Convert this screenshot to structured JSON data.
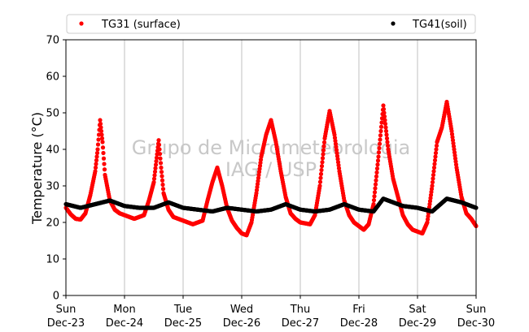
{
  "chart_data": {
    "type": "scatter",
    "ylabel": "Temperature (°C)",
    "xlabel": "",
    "ylim": [
      0,
      70
    ],
    "yticks": [
      0,
      10,
      20,
      30,
      40,
      50,
      60,
      70
    ],
    "xlim": [
      "2018-12-23 00:00",
      "2018-12-30 00:00"
    ],
    "xticks": [
      {
        "day": "Sun",
        "date": "Dec-23"
      },
      {
        "day": "Mon",
        "date": "Dec-24"
      },
      {
        "day": "Tue",
        "date": "Dec-25"
      },
      {
        "day": "Wed",
        "date": "Dec-26"
      },
      {
        "day": "Thu",
        "date": "Dec-27"
      },
      {
        "day": "Fri",
        "date": "Dec-28"
      },
      {
        "day": "Sat",
        "date": "Dec-29"
      },
      {
        "day": "Sun",
        "date": "Dec-30"
      }
    ],
    "grid": "vertical",
    "legend_position": "top",
    "watermark": [
      "Grupo de Micrometeorologia",
      "IAG / USP"
    ],
    "series": [
      {
        "name": "TG31 (surface)",
        "color": "#ff0000",
        "points": [
          [
            "2018-12-23 00:00",
            24.0
          ],
          [
            "2018-12-23 02:00",
            22.2
          ],
          [
            "2018-12-23 04:00",
            21.0
          ],
          [
            "2018-12-23 06:00",
            20.8
          ],
          [
            "2018-12-23 08:00",
            22.5
          ],
          [
            "2018-12-23 10:00",
            27.5
          ],
          [
            "2018-12-23 12:00",
            34.0
          ],
          [
            "2018-12-23 13:00",
            40.0
          ],
          [
            "2018-12-23 14:00",
            48.0
          ],
          [
            "2018-12-23 15:00",
            42.0
          ],
          [
            "2018-12-23 16:00",
            33.0
          ],
          [
            "2018-12-23 18:00",
            26.0
          ],
          [
            "2018-12-23 20:00",
            23.5
          ],
          [
            "2018-12-23 22:00",
            22.5
          ],
          [
            "2018-12-24 00:00",
            22.0
          ],
          [
            "2018-12-24 04:00",
            21.0
          ],
          [
            "2018-12-24 08:00",
            22.0
          ],
          [
            "2018-12-24 10:00",
            26.0
          ],
          [
            "2018-12-24 12:00",
            31.0
          ],
          [
            "2018-12-24 14:00",
            42.5
          ],
          [
            "2018-12-24 15:00",
            35.0
          ],
          [
            "2018-12-24 16:00",
            28.0
          ],
          [
            "2018-12-24 18:00",
            23.5
          ],
          [
            "2018-12-24 20:00",
            21.5
          ],
          [
            "2018-12-24 22:00",
            21.0
          ],
          [
            "2018-12-25 00:00",
            20.5
          ],
          [
            "2018-12-25 04:00",
            19.5
          ],
          [
            "2018-12-25 08:00",
            20.5
          ],
          [
            "2018-12-25 10:00",
            26.0
          ],
          [
            "2018-12-25 12:00",
            31.0
          ],
          [
            "2018-12-25 14:00",
            35.0
          ],
          [
            "2018-12-25 16:00",
            30.0
          ],
          [
            "2018-12-25 18:00",
            24.0
          ],
          [
            "2018-12-25 20:00",
            20.5
          ],
          [
            "2018-12-25 22:00",
            18.5
          ],
          [
            "2018-12-26 00:00",
            17.0
          ],
          [
            "2018-12-26 02:00",
            16.5
          ],
          [
            "2018-12-26 04:00",
            20.0
          ],
          [
            "2018-12-26 06:00",
            28.0
          ],
          [
            "2018-12-26 08:00",
            38.0
          ],
          [
            "2018-12-26 10:00",
            44.0
          ],
          [
            "2018-12-26 12:00",
            48.0
          ],
          [
            "2018-12-26 14:00",
            42.0
          ],
          [
            "2018-12-26 16:00",
            34.0
          ],
          [
            "2018-12-26 18:00",
            27.0
          ],
          [
            "2018-12-26 20:00",
            22.5
          ],
          [
            "2018-12-26 22:00",
            21.0
          ],
          [
            "2018-12-27 00:00",
            20.0
          ],
          [
            "2018-12-27 04:00",
            19.5
          ],
          [
            "2018-12-27 06:00",
            22.0
          ],
          [
            "2018-12-27 08:00",
            30.0
          ],
          [
            "2018-12-27 10:00",
            43.0
          ],
          [
            "2018-12-27 12:00",
            50.5
          ],
          [
            "2018-12-27 14:00",
            44.0
          ],
          [
            "2018-12-27 16:00",
            34.0
          ],
          [
            "2018-12-27 18:00",
            26.0
          ],
          [
            "2018-12-27 20:00",
            22.0
          ],
          [
            "2018-12-27 22:00",
            20.0
          ],
          [
            "2018-12-28 00:00",
            19.0
          ],
          [
            "2018-12-28 02:00",
            18.0
          ],
          [
            "2018-12-28 04:00",
            19.5
          ],
          [
            "2018-12-28 06:00",
            25.0
          ],
          [
            "2018-12-28 08:00",
            38.0
          ],
          [
            "2018-12-28 10:00",
            52.0
          ],
          [
            "2018-12-28 12:00",
            40.0
          ],
          [
            "2018-12-28 14:00",
            32.0
          ],
          [
            "2018-12-28 16:00",
            27.0
          ],
          [
            "2018-12-28 18:00",
            22.0
          ],
          [
            "2018-12-28 20:00",
            19.5
          ],
          [
            "2018-12-28 22:00",
            18.0
          ],
          [
            "2018-12-29 00:00",
            17.5
          ],
          [
            "2018-12-29 02:00",
            17.0
          ],
          [
            "2018-12-29 04:00",
            20.0
          ],
          [
            "2018-12-29 06:00",
            30.0
          ],
          [
            "2018-12-29 08:00",
            42.0
          ],
          [
            "2018-12-29 10:00",
            46.0
          ],
          [
            "2018-12-29 12:00",
            53.0
          ],
          [
            "2018-12-29 14:00",
            45.0
          ],
          [
            "2018-12-29 16:00",
            35.0
          ],
          [
            "2018-12-29 18:00",
            27.0
          ],
          [
            "2018-12-29 20:00",
            22.5
          ],
          [
            "2018-12-29 22:00",
            21.0
          ],
          [
            "2018-12-30 00:00",
            19.0
          ]
        ]
      },
      {
        "name": "TG41(soil)",
        "color": "#000000",
        "points": [
          [
            "2018-12-23 00:00",
            25.0
          ],
          [
            "2018-12-23 06:00",
            24.0
          ],
          [
            "2018-12-23 12:00",
            25.0
          ],
          [
            "2018-12-23 18:00",
            26.0
          ],
          [
            "2018-12-24 00:00",
            24.5
          ],
          [
            "2018-12-24 06:00",
            24.0
          ],
          [
            "2018-12-24 12:00",
            24.0
          ],
          [
            "2018-12-24 18:00",
            25.5
          ],
          [
            "2018-12-25 00:00",
            24.0
          ],
          [
            "2018-12-25 06:00",
            23.5
          ],
          [
            "2018-12-25 12:00",
            23.0
          ],
          [
            "2018-12-25 18:00",
            24.0
          ],
          [
            "2018-12-26 00:00",
            23.5
          ],
          [
            "2018-12-26 06:00",
            23.0
          ],
          [
            "2018-12-26 12:00",
            23.5
          ],
          [
            "2018-12-26 18:00",
            25.0
          ],
          [
            "2018-12-27 00:00",
            23.5
          ],
          [
            "2018-12-27 06:00",
            23.0
          ],
          [
            "2018-12-27 12:00",
            23.5
          ],
          [
            "2018-12-27 18:00",
            25.0
          ],
          [
            "2018-12-28 00:00",
            23.5
          ],
          [
            "2018-12-28 06:00",
            23.0
          ],
          [
            "2018-12-28 10:00",
            26.5
          ],
          [
            "2018-12-28 18:00",
            24.5
          ],
          [
            "2018-12-29 00:00",
            24.0
          ],
          [
            "2018-12-29 06:00",
            23.0
          ],
          [
            "2018-12-29 12:00",
            26.5
          ],
          [
            "2018-12-29 18:00",
            25.5
          ],
          [
            "2018-12-30 00:00",
            24.0
          ]
        ]
      }
    ]
  }
}
